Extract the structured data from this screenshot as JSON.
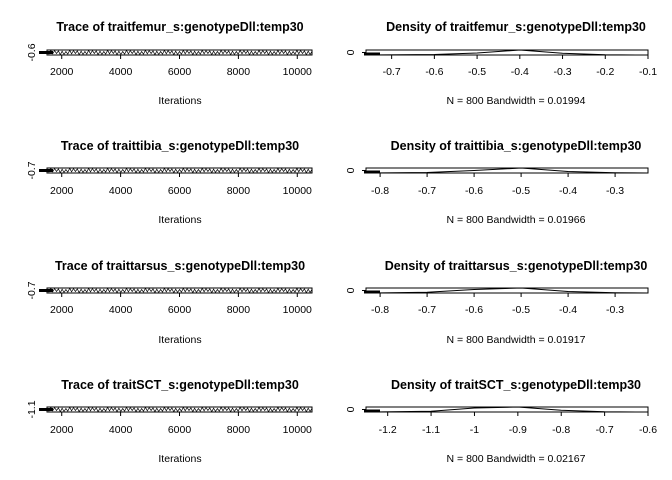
{
  "chart_data": [
    {
      "type": "line",
      "title": "Trace of traitfemur_s:genotypeDll:temp30",
      "xlabel": "Iterations",
      "ylabel": "",
      "x_ticks": [
        2000,
        4000,
        6000,
        8000,
        10000
      ],
      "y_ticks": [
        -0.6
      ],
      "xlim": [
        1500,
        10500
      ],
      "series": [
        {
          "x_start": 1500,
          "x_end": 10500,
          "center": -0.6,
          "spread": 0.05
        }
      ]
    },
    {
      "type": "line",
      "title": "Density of traitfemur_s:genotypeDll:temp30",
      "xlabel": "N = 800   Bandwidth = 0.01994",
      "ylabel": "",
      "x_ticks": [
        -0.7,
        -0.6,
        -0.5,
        -0.4,
        -0.3,
        -0.2,
        -0.1
      ],
      "y_ticks": [
        0
      ],
      "xlim": [
        -0.76,
        -0.1
      ],
      "series": [
        {
          "x": [
            -0.76,
            -0.6,
            -0.5,
            -0.4,
            -0.3,
            -0.2,
            -0.1
          ],
          "y": [
            0,
            0.1,
            0.4,
            1.0,
            0.35,
            0.05,
            0
          ]
        }
      ]
    },
    {
      "type": "line",
      "title": "Trace of traittibia_s:genotypeDll:temp30",
      "xlabel": "Iterations",
      "ylabel": "",
      "x_ticks": [
        2000,
        4000,
        6000,
        8000,
        10000
      ],
      "y_ticks": [
        -0.7
      ],
      "xlim": [
        1500,
        10500
      ],
      "series": [
        {
          "x_start": 1500,
          "x_end": 10500,
          "center": -0.7,
          "spread": 0.05
        }
      ]
    },
    {
      "type": "line",
      "title": "Density of traittibia_s:genotypeDll:temp30",
      "xlabel": "N = 800   Bandwidth = 0.01966",
      "ylabel": "",
      "x_ticks": [
        -0.8,
        -0.7,
        -0.6,
        -0.5,
        -0.4,
        -0.3
      ],
      "y_ticks": [
        0
      ],
      "xlim": [
        -0.83,
        -0.23
      ],
      "series": [
        {
          "x": [
            -0.83,
            -0.7,
            -0.6,
            -0.5,
            -0.4,
            -0.3,
            -0.23
          ],
          "y": [
            0,
            0.1,
            0.5,
            1.0,
            0.3,
            0.04,
            0
          ]
        }
      ]
    },
    {
      "type": "line",
      "title": "Trace of traittarsus_s:genotypeDll:temp30",
      "xlabel": "Iterations",
      "ylabel": "",
      "x_ticks": [
        2000,
        4000,
        6000,
        8000,
        10000
      ],
      "y_ticks": [
        -0.7
      ],
      "xlim": [
        1500,
        10500
      ],
      "series": [
        {
          "x_start": 1500,
          "x_end": 10500,
          "center": -0.7,
          "spread": 0.05
        }
      ]
    },
    {
      "type": "line",
      "title": "Density of traittarsus_s:genotypeDll:temp30",
      "xlabel": "N = 800   Bandwidth = 0.01917",
      "ylabel": "",
      "x_ticks": [
        -0.8,
        -0.7,
        -0.6,
        -0.5,
        -0.4,
        -0.3
      ],
      "y_ticks": [
        0
      ],
      "xlim": [
        -0.83,
        -0.23
      ],
      "series": [
        {
          "x": [
            -0.83,
            -0.7,
            -0.6,
            -0.5,
            -0.4,
            -0.3,
            -0.23
          ],
          "y": [
            0,
            0.15,
            0.7,
            1.0,
            0.3,
            0.05,
            0
          ]
        }
      ]
    },
    {
      "type": "line",
      "title": "Trace of traitSCT_s:genotypeDll:temp30",
      "xlabel": "Iterations",
      "ylabel": "",
      "x_ticks": [
        2000,
        4000,
        6000,
        8000,
        10000
      ],
      "y_ticks": [
        -1.1
      ],
      "xlim": [
        1500,
        10500
      ],
      "series": [
        {
          "x_start": 1500,
          "x_end": 10500,
          "center": -1.1,
          "spread": 0.05
        }
      ]
    },
    {
      "type": "line",
      "title": "Density of traitSCT_s:genotypeDll:temp30",
      "xlabel": "N = 800   Bandwidth = 0.02167",
      "ylabel": "",
      "x_ticks": [
        -1.2,
        -1.1,
        -1.0,
        -0.9,
        -0.8,
        -0.7,
        -0.6
      ],
      "y_ticks": [
        0
      ],
      "xlim": [
        -1.25,
        -0.6
      ],
      "series": [
        {
          "x": [
            -1.25,
            -1.1,
            -1.0,
            -0.9,
            -0.8,
            -0.7,
            -0.6
          ],
          "y": [
            0,
            0.15,
            0.8,
            1.0,
            0.35,
            0.05,
            0
          ]
        }
      ]
    }
  ]
}
